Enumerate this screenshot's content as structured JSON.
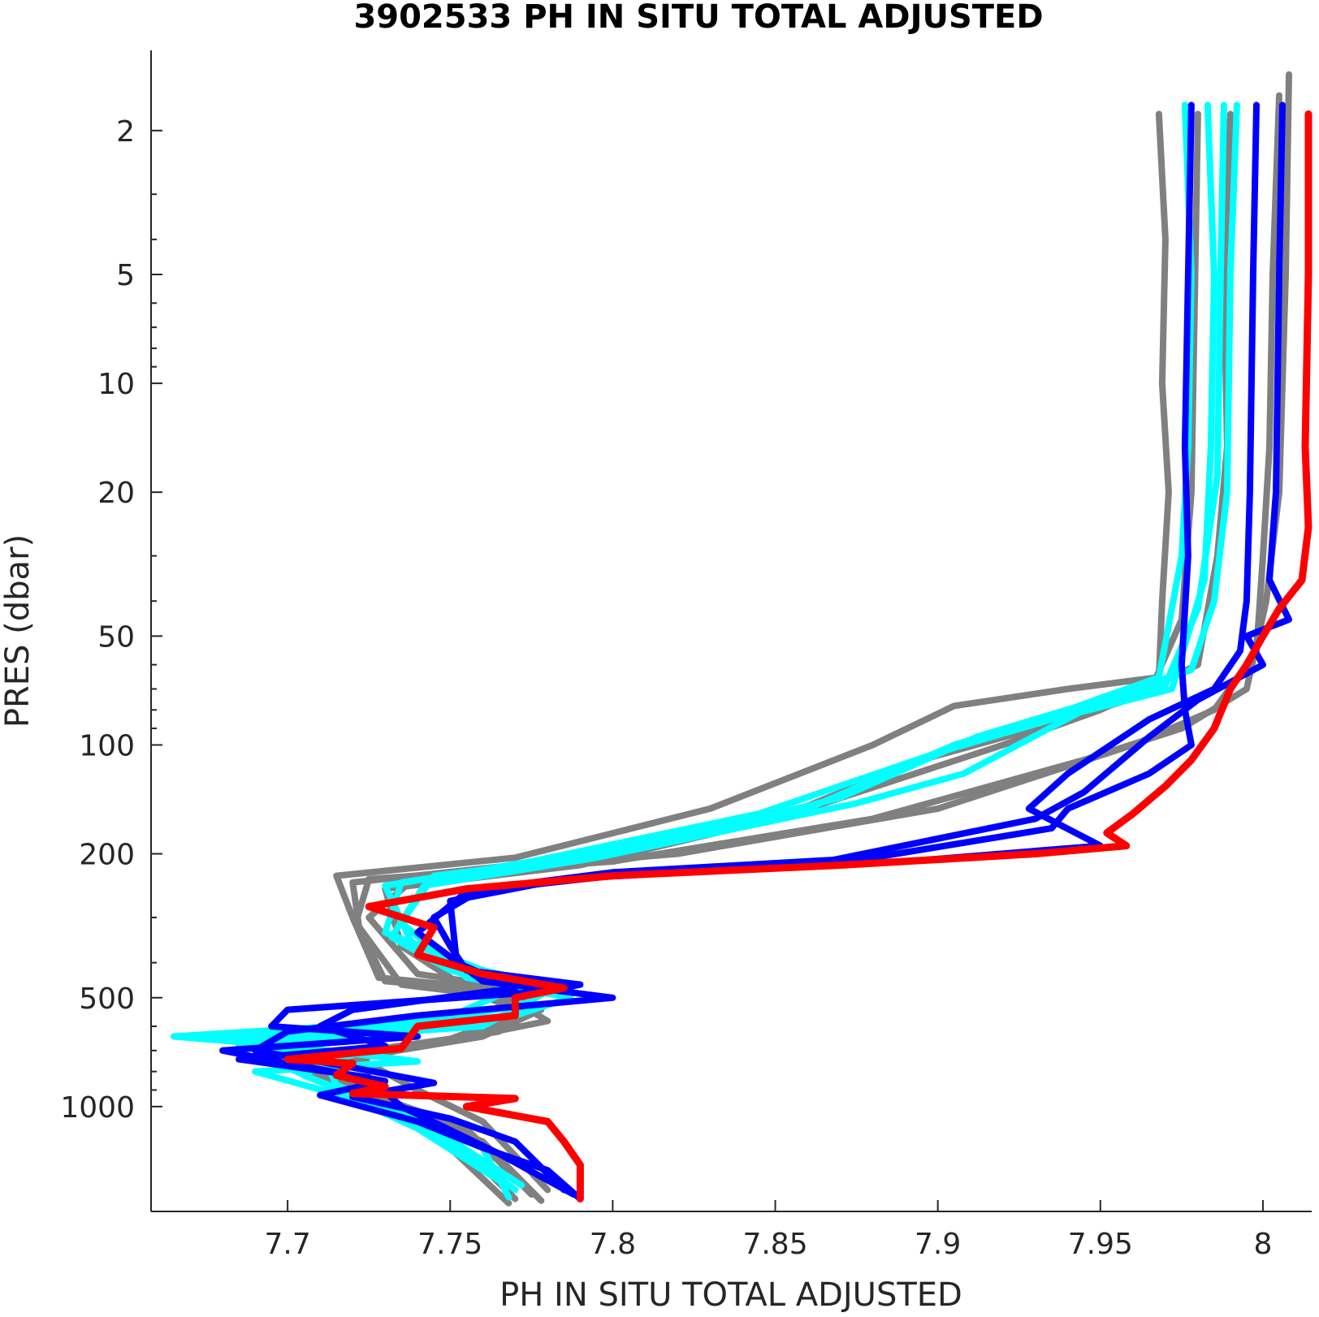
{
  "chart_data": {
    "type": "line",
    "title": "3902533  PH IN SITU TOTAL ADJUSTED",
    "xlabel": "PH IN SITU TOTAL ADJUSTED",
    "ylabel": "PRES (dbar)",
    "xlim": [
      7.658,
      8.015
    ],
    "ylim": [
      1.2,
      1950
    ],
    "y_scale": "log",
    "y_reversed": true,
    "grid": false,
    "x_ticks": [
      7.7,
      7.75,
      7.8,
      7.85,
      7.9,
      7.95,
      8
    ],
    "x_tick_labels": [
      "7.7",
      "7.75",
      "7.8",
      "7.85",
      "7.9",
      "7.95",
      "8"
    ],
    "y_ticks": [
      2,
      5,
      10,
      20,
      50,
      100,
      200,
      500,
      1000
    ],
    "y_tick_labels": [
      "2",
      "5",
      "10",
      "20",
      "50",
      "100",
      "200",
      "500",
      "1000"
    ],
    "colors": {
      "grey": "#808080",
      "cyan": "#00ffff",
      "blue": "#0000ff",
      "red": "#ff0000"
    },
    "series": [
      {
        "color": "grey",
        "points": [
          [
            7.968,
            1.8
          ],
          [
            7.97,
            4
          ],
          [
            7.969,
            10
          ],
          [
            7.971,
            20
          ],
          [
            7.969,
            40
          ],
          [
            7.968,
            65
          ],
          [
            7.94,
            70
          ],
          [
            7.905,
            78
          ],
          [
            7.88,
            100
          ],
          [
            7.83,
            150
          ],
          [
            7.77,
            205
          ],
          [
            7.715,
            230
          ],
          [
            7.72,
            300
          ],
          [
            7.728,
            440
          ],
          [
            7.76,
            470
          ],
          [
            7.775,
            520
          ],
          [
            7.765,
            620
          ],
          [
            7.72,
            720
          ],
          [
            7.74,
            900
          ],
          [
            7.76,
            1100
          ],
          [
            7.78,
            1700
          ]
        ]
      },
      {
        "color": "grey",
        "points": [
          [
            7.99,
            1.8
          ],
          [
            7.988,
            5
          ],
          [
            7.989,
            15
          ],
          [
            7.986,
            30
          ],
          [
            7.98,
            60
          ],
          [
            7.95,
            80
          ],
          [
            7.92,
            100
          ],
          [
            7.86,
            150
          ],
          [
            7.78,
            210
          ],
          [
            7.72,
            240
          ],
          [
            7.722,
            320
          ],
          [
            7.73,
            450
          ],
          [
            7.765,
            480
          ],
          [
            7.77,
            560
          ],
          [
            7.75,
            650
          ],
          [
            7.705,
            740
          ],
          [
            7.725,
            920
          ],
          [
            7.755,
            1150
          ],
          [
            7.775,
            1750
          ]
        ]
      },
      {
        "color": "grey",
        "points": [
          [
            8.005,
            1.6
          ],
          [
            8.003,
            5
          ],
          [
            8.002,
            15
          ],
          [
            8.0,
            30
          ],
          [
            7.998,
            55
          ],
          [
            7.985,
            80
          ],
          [
            7.96,
            100
          ],
          [
            7.9,
            150
          ],
          [
            7.82,
            200
          ],
          [
            7.74,
            230
          ],
          [
            7.725,
            300
          ],
          [
            7.74,
            430
          ],
          [
            7.77,
            470
          ],
          [
            7.778,
            540
          ],
          [
            7.76,
            640
          ],
          [
            7.71,
            760
          ],
          [
            7.73,
            940
          ],
          [
            7.75,
            1200
          ],
          [
            7.77,
            1800
          ]
        ]
      },
      {
        "color": "grey",
        "points": [
          [
            8.008,
            1.4
          ],
          [
            8.007,
            5
          ],
          [
            8.005,
            20
          ],
          [
            8.001,
            40
          ],
          [
            7.995,
            70
          ],
          [
            7.975,
            90
          ],
          [
            7.945,
            110
          ],
          [
            7.88,
            160
          ],
          [
            7.8,
            210
          ],
          [
            7.725,
            235
          ],
          [
            7.721,
            310
          ],
          [
            7.735,
            460
          ],
          [
            7.768,
            500
          ],
          [
            7.78,
            580
          ],
          [
            7.745,
            670
          ],
          [
            7.7,
            750
          ],
          [
            7.72,
            900
          ],
          [
            7.745,
            1180
          ],
          [
            7.768,
            1850
          ]
        ]
      },
      {
        "color": "grey",
        "points": [
          [
            7.98,
            1.8
          ],
          [
            7.979,
            6
          ],
          [
            7.978,
            20
          ],
          [
            7.975,
            45
          ],
          [
            7.965,
            72
          ],
          [
            7.93,
            90
          ],
          [
            7.895,
            110
          ],
          [
            7.85,
            160
          ],
          [
            7.79,
            215
          ],
          [
            7.73,
            250
          ],
          [
            7.735,
            360
          ],
          [
            7.755,
            470
          ],
          [
            7.772,
            550
          ],
          [
            7.758,
            630
          ],
          [
            7.712,
            770
          ],
          [
            7.728,
            960
          ],
          [
            7.76,
            1250
          ],
          [
            7.778,
            1820
          ]
        ]
      },
      {
        "color": "cyan",
        "points": [
          [
            7.976,
            1.7
          ],
          [
            7.978,
            5
          ],
          [
            7.977,
            15
          ],
          [
            7.975,
            30
          ],
          [
            7.968,
            65
          ],
          [
            7.94,
            80
          ],
          [
            7.905,
            100
          ],
          [
            7.86,
            150
          ],
          [
            7.785,
            205
          ],
          [
            7.735,
            240
          ],
          [
            7.73,
            330
          ],
          [
            7.76,
            420
          ],
          [
            7.775,
            450
          ],
          [
            7.77,
            530
          ],
          [
            7.74,
            580
          ],
          [
            7.665,
            640
          ],
          [
            7.7,
            680
          ],
          [
            7.74,
            750
          ],
          [
            7.69,
            800
          ],
          [
            7.72,
            950
          ],
          [
            7.74,
            1150
          ],
          [
            7.765,
            1600
          ]
        ]
      },
      {
        "color": "cyan",
        "points": [
          [
            7.983,
            1.7
          ],
          [
            7.985,
            5
          ],
          [
            7.984,
            15
          ],
          [
            7.982,
            35
          ],
          [
            7.972,
            70
          ],
          [
            7.935,
            85
          ],
          [
            7.9,
            105
          ],
          [
            7.845,
            155
          ],
          [
            7.775,
            210
          ],
          [
            7.73,
            245
          ],
          [
            7.738,
            350
          ],
          [
            7.765,
            460
          ],
          [
            7.787,
            500
          ],
          [
            7.77,
            560
          ],
          [
            7.705,
            620
          ],
          [
            7.685,
            680
          ],
          [
            7.72,
            720
          ],
          [
            7.7,
            780
          ],
          [
            7.725,
            980
          ],
          [
            7.75,
            1250
          ],
          [
            7.77,
            1700
          ]
        ]
      },
      {
        "color": "cyan",
        "points": [
          [
            7.992,
            1.7
          ],
          [
            7.99,
            5
          ],
          [
            7.989,
            20
          ],
          [
            7.985,
            40
          ],
          [
            7.978,
            62
          ],
          [
            7.95,
            75
          ],
          [
            7.912,
            95
          ],
          [
            7.87,
            140
          ],
          [
            7.8,
            200
          ],
          [
            7.745,
            230
          ],
          [
            7.735,
            310
          ],
          [
            7.755,
            440
          ],
          [
            7.78,
            480
          ],
          [
            7.76,
            600
          ],
          [
            7.69,
            660
          ],
          [
            7.715,
            720
          ],
          [
            7.705,
            820
          ],
          [
            7.73,
            1000
          ],
          [
            7.748,
            1200
          ],
          [
            7.772,
            1650
          ]
        ]
      },
      {
        "color": "cyan",
        "points": [
          [
            7.988,
            1.7
          ],
          [
            7.987,
            5
          ],
          [
            7.986,
            18
          ],
          [
            7.98,
            42
          ],
          [
            7.97,
            68
          ],
          [
            7.945,
            80
          ],
          [
            7.908,
            120
          ],
          [
            7.875,
            145
          ],
          [
            7.795,
            205
          ],
          [
            7.742,
            245
          ],
          [
            7.732,
            340
          ],
          [
            7.75,
            420
          ],
          [
            7.77,
            470
          ],
          [
            7.745,
            590
          ],
          [
            7.68,
            650
          ],
          [
            7.71,
            700
          ],
          [
            7.715,
            870
          ],
          [
            7.735,
            1050
          ],
          [
            7.76,
            1300
          ],
          [
            7.768,
            1780
          ]
        ]
      },
      {
        "color": "blue",
        "points": [
          [
            7.978,
            1.7
          ],
          [
            7.977,
            5
          ],
          [
            7.976,
            15
          ],
          [
            7.977,
            30
          ],
          [
            7.975,
            60
          ],
          [
            7.976,
            80
          ],
          [
            7.978,
            100
          ],
          [
            7.965,
            120
          ],
          [
            7.94,
            150
          ],
          [
            7.935,
            170
          ],
          [
            7.88,
            205
          ],
          [
            7.8,
            225
          ],
          [
            7.76,
            250
          ],
          [
            7.745,
            300
          ],
          [
            7.75,
            360
          ],
          [
            7.755,
            420
          ],
          [
            7.79,
            460
          ],
          [
            7.78,
            480
          ],
          [
            7.7,
            540
          ],
          [
            7.695,
            600
          ],
          [
            7.74,
            640
          ],
          [
            7.68,
            700
          ],
          [
            7.7,
            760
          ],
          [
            7.73,
            850
          ],
          [
            7.71,
            930
          ],
          [
            7.74,
            1100
          ],
          [
            7.76,
            1300
          ],
          [
            7.78,
            1500
          ],
          [
            7.79,
            1800
          ]
        ]
      },
      {
        "color": "blue",
        "points": [
          [
            7.998,
            1.7
          ],
          [
            7.997,
            5
          ],
          [
            7.996,
            20
          ],
          [
            7.995,
            40
          ],
          [
            7.993,
            55
          ],
          [
            7.985,
            70
          ],
          [
            7.965,
            85
          ],
          [
            7.94,
            120
          ],
          [
            7.928,
            150
          ],
          [
            7.95,
            190
          ],
          [
            7.89,
            210
          ],
          [
            7.8,
            230
          ],
          [
            7.755,
            255
          ],
          [
            7.74,
            330
          ],
          [
            7.76,
            450
          ],
          [
            7.8,
            500
          ],
          [
            7.74,
            560
          ],
          [
            7.7,
            620
          ],
          [
            7.69,
            700
          ],
          [
            7.72,
            780
          ],
          [
            7.745,
            860
          ],
          [
            7.72,
            940
          ],
          [
            7.75,
            1080
          ],
          [
            7.77,
            1250
          ],
          [
            7.785,
            1700
          ]
        ]
      },
      {
        "color": "blue",
        "points": [
          [
            8.006,
            1.7
          ],
          [
            8.005,
            5
          ],
          [
            8.004,
            20
          ],
          [
            8.002,
            35
          ],
          [
            8.008,
            45
          ],
          [
            7.995,
            50
          ],
          [
            8.0,
            60
          ],
          [
            7.98,
            75
          ],
          [
            7.965,
            95
          ],
          [
            7.945,
            135
          ],
          [
            7.93,
            160
          ],
          [
            7.86,
            215
          ],
          [
            7.785,
            235
          ],
          [
            7.75,
            270
          ],
          [
            7.752,
            400
          ],
          [
            7.77,
            470
          ],
          [
            7.72,
            540
          ],
          [
            7.71,
            600
          ],
          [
            7.73,
            680
          ],
          [
            7.685,
            740
          ],
          [
            7.725,
            830
          ],
          [
            7.735,
            1000
          ],
          [
            7.765,
            1350
          ],
          [
            7.788,
            1750
          ]
        ]
      },
      {
        "color": "red",
        "points": [
          [
            8.014,
            1.8
          ],
          [
            8.014,
            5
          ],
          [
            8.013,
            15
          ],
          [
            8.014,
            25
          ],
          [
            8.012,
            35
          ],
          [
            8.005,
            42
          ],
          [
            8.0,
            50
          ],
          [
            7.995,
            60
          ],
          [
            7.99,
            70
          ],
          [
            7.985,
            90
          ],
          [
            7.978,
            110
          ],
          [
            7.97,
            130
          ],
          [
            7.96,
            155
          ],
          [
            7.952,
            175
          ],
          [
            7.958,
            190
          ],
          [
            7.93,
            200
          ],
          [
            7.87,
            215
          ],
          [
            7.8,
            230
          ],
          [
            7.755,
            250
          ],
          [
            7.725,
            280
          ],
          [
            7.745,
            320
          ],
          [
            7.74,
            380
          ],
          [
            7.76,
            430
          ],
          [
            7.785,
            470
          ],
          [
            7.77,
            500
          ],
          [
            7.77,
            560
          ],
          [
            7.74,
            600
          ],
          [
            7.735,
            690
          ],
          [
            7.7,
            740
          ],
          [
            7.72,
            760
          ],
          [
            7.715,
            820
          ],
          [
            7.73,
            880
          ],
          [
            7.72,
            920
          ],
          [
            7.77,
            950
          ],
          [
            7.755,
            1000
          ],
          [
            7.78,
            1100
          ],
          [
            7.785,
            1250
          ],
          [
            7.79,
            1450
          ],
          [
            7.79,
            1800
          ]
        ]
      }
    ]
  }
}
